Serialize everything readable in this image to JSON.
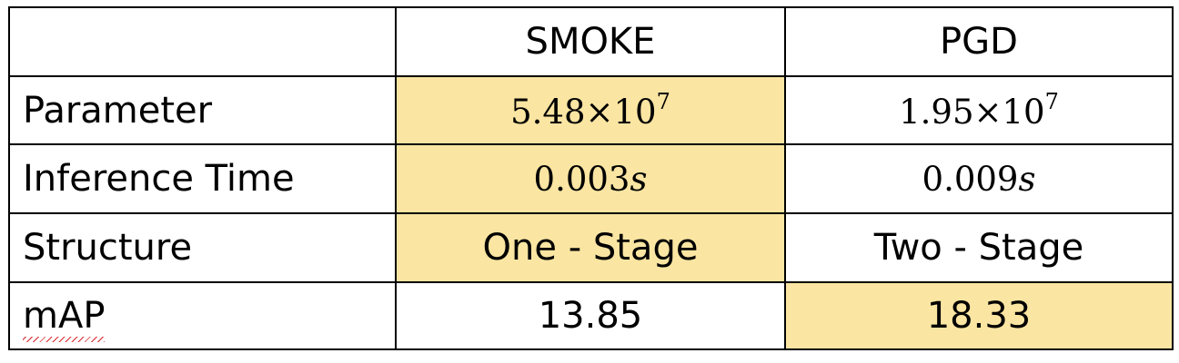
{
  "table": {
    "headers": [
      "",
      "SMOKE",
      "PGD"
    ],
    "rows": [
      {
        "label": "Parameter",
        "smoke": {
          "mantissa": "5.48×10",
          "exponent": "7"
        },
        "pgd": {
          "mantissa": "1.95×10",
          "exponent": "7"
        }
      },
      {
        "label": "Inference Time",
        "smoke": {
          "number": "0.003",
          "unit": "s"
        },
        "pgd": {
          "number": "0.009",
          "unit": "s"
        }
      },
      {
        "label": "Structure",
        "smoke": "One - Stage",
        "pgd": "Two - Stage"
      },
      {
        "label": "mAP",
        "smoke": "13.85",
        "pgd": "18.33"
      }
    ]
  },
  "colors": {
    "highlight": "#fae5a2",
    "border": "#000000",
    "spellcheck_underline": "#d8262e"
  }
}
